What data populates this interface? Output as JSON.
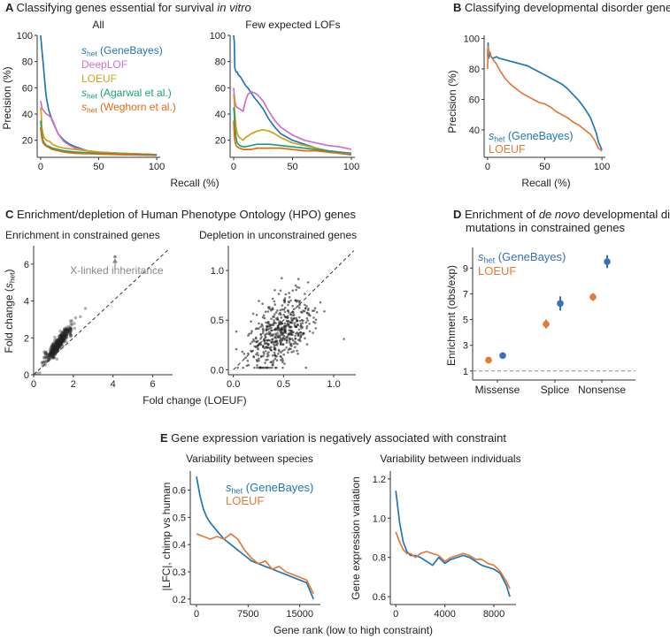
{
  "colors": {
    "genebayes": "#1f77b4",
    "deeplof": "#d070c8",
    "loeuf_a": "#d4a017",
    "agarwal": "#1aa37a",
    "weghorn": "#e06a10",
    "loeuf": "#e27a3a",
    "genebayes_dot": "#3a70b5",
    "text": "#222222",
    "axis": "#333333",
    "scatter": "#222222",
    "annot": "#8a8a8a"
  },
  "chart_data": [
    {
      "id": "A1",
      "panel_letter": "A",
      "panel_title": "Classifying genes essential for survival ",
      "panel_title_em": "in vitro",
      "type": "line",
      "subtitle": "All",
      "xlabel": "Recall (%)",
      "ylabel": "Precision (%)",
      "xlim": [
        -3,
        103
      ],
      "ylim": [
        7,
        100
      ],
      "xticks": [
        0,
        50,
        100
      ],
      "yticks": [
        20,
        40,
        60,
        80,
        100
      ],
      "legend": [
        {
          "sym": "s",
          "sub": "het",
          "text": " (GeneBayes)",
          "color": "genebayes"
        },
        {
          "text": "DeepLOF",
          "color": "deeplof"
        },
        {
          "text": "LOEUF",
          "color": "loeuf_a"
        },
        {
          "sym": "s",
          "sub": "het",
          "text": " (Agarwal et al.)",
          "color": "agarwal"
        },
        {
          "sym": "s",
          "sub": "het",
          "text": " (Weghorn et al.)",
          "color": "weghorn"
        }
      ],
      "series": [
        {
          "name": "GeneBayes",
          "color": "genebayes",
          "x": [
            0,
            0.5,
            1,
            2,
            3,
            4,
            5,
            7,
            10,
            15,
            20,
            25,
            30,
            40,
            50,
            70,
            100
          ],
          "y": [
            100,
            95,
            90,
            80,
            70,
            60,
            52,
            43,
            35,
            25,
            20,
            17,
            15,
            12,
            11,
            10,
            9
          ]
        },
        {
          "name": "DeepLOF",
          "color": "deeplof",
          "x": [
            0,
            0.5,
            1,
            2,
            3,
            5,
            7,
            10,
            15,
            20,
            25,
            30,
            40,
            50,
            70,
            100
          ],
          "y": [
            50,
            48,
            45,
            43,
            42,
            40,
            39,
            36,
            25,
            19,
            16,
            14,
            12,
            11,
            10,
            9
          ]
        },
        {
          "name": "LOEUF",
          "color": "loeuf_a",
          "x": [
            0,
            0.5,
            1,
            2,
            3,
            5,
            8,
            10,
            15,
            20,
            30,
            50,
            70,
            100
          ],
          "y": [
            45,
            40,
            30,
            25,
            22,
            20,
            19,
            17,
            15,
            14,
            13,
            11,
            10,
            9
          ]
        },
        {
          "name": "Agarwal",
          "color": "agarwal",
          "x": [
            0,
            0.5,
            1,
            2,
            3,
            5,
            8,
            10,
            15,
            20,
            30,
            50,
            70,
            100
          ],
          "y": [
            35,
            30,
            25,
            20,
            18,
            16,
            15,
            14,
            13,
            12,
            11,
            10,
            9.5,
            9
          ]
        },
        {
          "name": "Weghorn",
          "color": "weghorn",
          "x": [
            0,
            0.5,
            1,
            2,
            4,
            6,
            8,
            10,
            15,
            20,
            30,
            50,
            70,
            100
          ],
          "y": [
            30,
            25,
            22,
            18,
            16,
            15,
            14,
            13,
            12,
            11,
            10,
            9.5,
            9,
            8.5
          ]
        }
      ]
    },
    {
      "id": "A2",
      "type": "line",
      "subtitle": "Few expected LOFs",
      "xlabel": "",
      "ylabel": "",
      "xlim": [
        -3,
        103
      ],
      "ylim": [
        7,
        100
      ],
      "xticks": [
        0,
        50,
        100
      ],
      "yticks": [
        20,
        40,
        60,
        80,
        100
      ],
      "series": [
        {
          "name": "GeneBayes",
          "color": "genebayes",
          "x": [
            0,
            0.5,
            1,
            2,
            3,
            4,
            6,
            8,
            10,
            12,
            15,
            18,
            20,
            25,
            30,
            35,
            40,
            50,
            60,
            70,
            80,
            90,
            100
          ],
          "y": [
            100,
            95,
            75,
            72,
            72,
            70,
            68,
            65,
            62,
            60,
            56,
            52,
            50,
            44,
            36,
            30,
            25,
            20,
            17,
            14,
            12,
            10,
            9
          ]
        },
        {
          "name": "DeepLOF",
          "color": "deeplof",
          "x": [
            0,
            0.5,
            1,
            2,
            3,
            5,
            8,
            10,
            12,
            15,
            18,
            20,
            25,
            30,
            35,
            40,
            50,
            60,
            70,
            80,
            90,
            100
          ],
          "y": [
            60,
            55,
            50,
            46,
            45,
            44,
            42,
            50,
            55,
            57,
            56,
            55,
            50,
            42,
            35,
            30,
            24,
            20,
            18,
            16,
            15,
            13
          ]
        },
        {
          "name": "LOEUF",
          "color": "loeuf_a",
          "x": [
            0,
            0.5,
            1,
            2,
            3,
            5,
            8,
            10,
            15,
            20,
            25,
            30,
            35,
            40,
            50,
            60,
            70,
            80,
            90,
            100
          ],
          "y": [
            55,
            50,
            40,
            30,
            25,
            22,
            20,
            22,
            25,
            27,
            28,
            27,
            25,
            22,
            18,
            16,
            14,
            12,
            11,
            10
          ]
        },
        {
          "name": "Agarwal",
          "color": "agarwal",
          "x": [
            0,
            0.5,
            1,
            2,
            3,
            5,
            8,
            10,
            15,
            20,
            25,
            30,
            40,
            50,
            60,
            70,
            80,
            90,
            100
          ],
          "y": [
            45,
            40,
            30,
            22,
            18,
            16,
            15,
            15,
            16,
            17,
            17,
            17,
            16,
            15,
            14,
            13,
            12,
            11,
            10
          ]
        },
        {
          "name": "Weghorn",
          "color": "weghorn",
          "x": [
            0,
            0.5,
            1,
            2,
            3,
            5,
            8,
            10,
            15,
            20,
            30,
            40,
            50,
            60,
            70,
            80,
            90,
            100
          ],
          "y": [
            35,
            25,
            20,
            16,
            15,
            14,
            13,
            13,
            13,
            14,
            14,
            14,
            13,
            12,
            12,
            11,
            10,
            9.5
          ]
        }
      ]
    },
    {
      "id": "B",
      "panel_letter": "B",
      "panel_title": "Classifying developmental disorder genes",
      "type": "line",
      "xlabel": "Recall (%)",
      "ylabel": "Precision (%)",
      "xlim": [
        -3,
        103
      ],
      "ylim": [
        22,
        102
      ],
      "xticks": [
        0,
        50,
        100
      ],
      "yticks": [
        40,
        60,
        80,
        100
      ],
      "legend": [
        {
          "sym": "s",
          "sub": "het",
          "text": " (GeneBayes)",
          "color": "genebayes"
        },
        {
          "text": "LOEUF",
          "color": "loeuf"
        }
      ],
      "series": [
        {
          "name": "GeneBayes",
          "color": "genebayes",
          "x": [
            0,
            0.5,
            1,
            2,
            3,
            5,
            8,
            10,
            15,
            20,
            25,
            30,
            35,
            40,
            45,
            50,
            55,
            60,
            65,
            70,
            75,
            80,
            85,
            90,
            93,
            95,
            97,
            100
          ],
          "y": [
            88,
            97,
            87,
            91,
            88,
            87,
            88,
            87,
            86,
            85,
            84,
            83,
            82,
            80,
            78,
            76,
            74,
            72,
            70,
            67,
            63,
            59,
            54,
            48,
            42,
            38,
            32,
            27
          ]
        },
        {
          "name": "LOEUF",
          "color": "loeuf",
          "x": [
            0,
            0.5,
            1,
            2,
            3,
            5,
            8,
            10,
            15,
            20,
            25,
            30,
            35,
            40,
            45,
            50,
            55,
            60,
            65,
            70,
            75,
            80,
            85,
            90,
            93,
            95,
            97,
            100
          ],
          "y": [
            80,
            95,
            92,
            90,
            88,
            86,
            83,
            80,
            74,
            70,
            67,
            64,
            62,
            60,
            58,
            57,
            55,
            52,
            50,
            48,
            45,
            43,
            40,
            37,
            34,
            31,
            28,
            26
          ]
        }
      ]
    },
    {
      "id": "C1",
      "panel_letter": "C",
      "panel_title": "Enrichment/depletion of Human Phenotype Ontology (HPO) genes",
      "type": "scatter",
      "subtitle": "Enrichment in constrained genes",
      "xlabel": "Fold change (LOEUF)",
      "ylabel_sym": "s",
      "ylabel_sub": "het",
      "ylabel_pre": "Fold change (",
      "ylabel_post": ")",
      "xlim": [
        0,
        7
      ],
      "ylim": [
        0,
        7
      ],
      "xticks": [
        0,
        2,
        4,
        6
      ],
      "yticks": [
        0,
        2,
        4,
        6
      ],
      "annotation": "X-linked inheritance",
      "annotation_point": [
        4.1,
        6.4
      ],
      "cluster": {
        "n": 420,
        "seed": 7,
        "x_mean": 1.25,
        "x_sd": 0.35,
        "slope": 1.35,
        "noise": 0.18
      },
      "diagonal": true
    },
    {
      "id": "C2",
      "type": "scatter",
      "subtitle": "Depletion in unconstrained genes",
      "xlabel": "",
      "ylabel": "",
      "xlim": [
        -0.05,
        1.22
      ],
      "ylim": [
        -0.05,
        1.25
      ],
      "xticks": [
        0.0,
        0.5,
        1.0
      ],
      "yticks": [
        0.0,
        0.5,
        1.0
      ],
      "tick_format": "1dp_x",
      "cluster": {
        "n": 520,
        "seed": 11,
        "x_mean": 0.47,
        "x_sd": 0.17,
        "slope": 0.55,
        "intercept": 0.12,
        "noise": 0.17
      },
      "diagonal": true
    },
    {
      "id": "D",
      "panel_letter": "D",
      "panel_title_pre": "Enrichment of ",
      "panel_title_em": "de novo",
      "panel_title_post": " developmental disorder",
      "panel_title_line2": "mutations in constrained genes",
      "type": "scatter",
      "xlabel": "",
      "ylabel": "Enrichment (obs/exp)",
      "categories": [
        "Missense",
        "Splice",
        "Nonsense"
      ],
      "ylim": [
        0.3,
        10.6
      ],
      "yticks": [
        1,
        3,
        5,
        7,
        9
      ],
      "legend": [
        {
          "sym": "s",
          "sub": "het",
          "text": " (GeneBayes)",
          "color": "genebayes_dot"
        },
        {
          "text": "LOEUF",
          "color": "loeuf"
        }
      ],
      "series": [
        {
          "name": "LOEUF",
          "color": "loeuf",
          "values": [
            1.85,
            4.65,
            6.75
          ],
          "err": [
            0.1,
            0.35,
            0.3
          ]
        },
        {
          "name": "GeneBayes",
          "color": "genebayes_dot",
          "values": [
            2.2,
            6.25,
            9.5
          ],
          "err": [
            0.1,
            0.55,
            0.5
          ]
        }
      ],
      "hline": 1
    },
    {
      "id": "E1",
      "panel_letter": "E",
      "panel_title": "Gene expression variation is negatively associated with constraint",
      "type": "line",
      "subtitle": "Variability between species",
      "xlabel": "Gene rank (low to high constraint)",
      "ylabel": "|LFC|, chimp vs human",
      "xlim": [
        -900,
        18000
      ],
      "ylim": [
        0.18,
        0.67
      ],
      "xticks": [
        0,
        7500,
        15000
      ],
      "yticks": [
        0.2,
        0.3,
        0.4,
        0.5,
        0.6
      ],
      "tick_format": "1dp_y",
      "legend": [
        {
          "sym": "s",
          "sub": "het",
          "text": " (GeneBayes)",
          "color": "genebayes"
        },
        {
          "text": "LOEUF",
          "color": "loeuf"
        }
      ],
      "series": [
        {
          "name": "GeneBayes",
          "color": "genebayes",
          "x": [
            0,
            500,
            1000,
            1500,
            2000,
            3000,
            4000,
            5000,
            6000,
            7000,
            8000,
            9000,
            10000,
            11000,
            12000,
            13000,
            14000,
            15000,
            16000,
            17000
          ],
          "y": [
            0.65,
            0.58,
            0.53,
            0.5,
            0.48,
            0.45,
            0.42,
            0.4,
            0.38,
            0.36,
            0.34,
            0.33,
            0.32,
            0.31,
            0.3,
            0.29,
            0.28,
            0.27,
            0.26,
            0.2
          ]
        },
        {
          "name": "LOEUF",
          "color": "loeuf",
          "x": [
            0,
            1000,
            2000,
            3000,
            4000,
            5000,
            6000,
            7000,
            8000,
            9000,
            10000,
            11000,
            12000,
            13000,
            14000,
            15000,
            16000,
            17000
          ],
          "y": [
            0.44,
            0.43,
            0.42,
            0.43,
            0.42,
            0.44,
            0.42,
            0.38,
            0.35,
            0.33,
            0.34,
            0.31,
            0.32,
            0.3,
            0.29,
            0.28,
            0.27,
            0.22
          ]
        }
      ]
    },
    {
      "id": "E2",
      "type": "line",
      "subtitle": "Variability between individuals",
      "xlabel": "",
      "ylabel": "Gene expression variation",
      "xlim": [
        -450,
        9800
      ],
      "ylim": [
        0.56,
        1.24
      ],
      "xticks": [
        0,
        4000,
        8000
      ],
      "yticks": [
        0.6,
        0.8,
        1.0,
        1.2
      ],
      "tick_format": "1dp_y",
      "series": [
        {
          "name": "GeneBayes",
          "color": "genebayes",
          "x": [
            0,
            300,
            600,
            900,
            1200,
            1600,
            2000,
            2500,
            3000,
            3500,
            4000,
            4500,
            5000,
            5500,
            6000,
            6500,
            7000,
            7500,
            8000,
            8500,
            9000,
            9300
          ],
          "y": [
            1.14,
            0.98,
            0.88,
            0.83,
            0.81,
            0.81,
            0.8,
            0.78,
            0.76,
            0.8,
            0.77,
            0.79,
            0.8,
            0.81,
            0.8,
            0.78,
            0.76,
            0.75,
            0.74,
            0.72,
            0.66,
            0.6
          ]
        },
        {
          "name": "LOEUF",
          "color": "loeuf",
          "x": [
            0,
            300,
            600,
            900,
            1200,
            1600,
            2000,
            2500,
            3000,
            3500,
            4000,
            4500,
            5000,
            5500,
            6000,
            6500,
            7000,
            7500,
            8000,
            8500,
            9000,
            9300
          ],
          "y": [
            0.93,
            0.88,
            0.84,
            0.82,
            0.82,
            0.8,
            0.82,
            0.83,
            0.82,
            0.81,
            0.78,
            0.8,
            0.81,
            0.82,
            0.81,
            0.79,
            0.79,
            0.77,
            0.76,
            0.73,
            0.68,
            0.64
          ]
        }
      ]
    }
  ]
}
